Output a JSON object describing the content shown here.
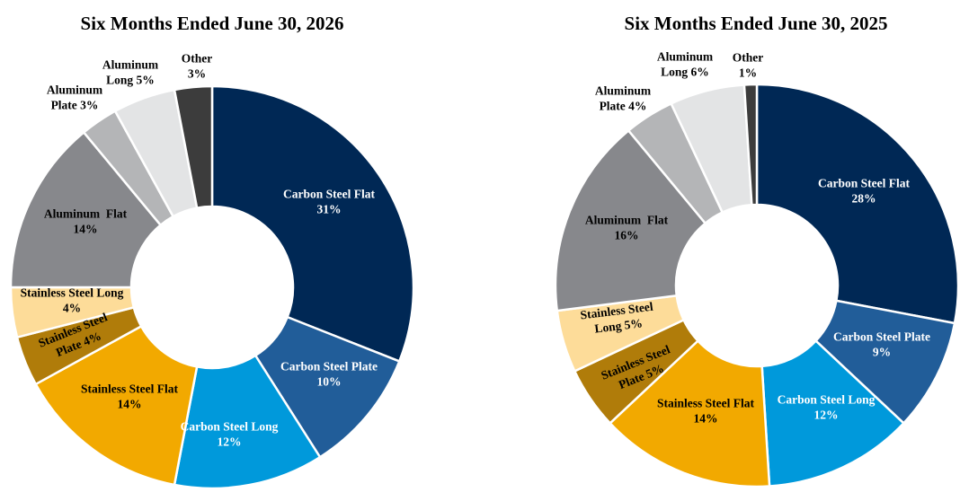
{
  "chart_data": [
    {
      "type": "pie",
      "title": "Six Months Ended June 30, 2026",
      "series": [
        {
          "name": "Carbon Steel Flat",
          "value": 31,
          "label_lines": [
            "Carbon Steel Flat",
            "31%"
          ],
          "color": "#002855",
          "text_color": "#ffffff"
        },
        {
          "name": "Carbon Steel Plate",
          "value": 10,
          "label_lines": [
            "Carbon Steel Plate",
            "10%"
          ],
          "color": "#215D99",
          "text_color": "#ffffff"
        },
        {
          "name": "Carbon Steel Long",
          "value": 12,
          "label_lines": [
            "Carbon Steel Long",
            "12%"
          ],
          "color": "#0099DB",
          "text_color": "#ffffff"
        },
        {
          "name": "Stainless Steel Flat",
          "value": 14,
          "label_lines": [
            "Stainless Steel Flat",
            "14%"
          ],
          "color": "#F2A900",
          "text_color": "#000000"
        },
        {
          "name": "Stainless Steel Plate",
          "value": 4,
          "label_lines": [
            "Stainless Steel",
            "Plate 4%"
          ],
          "color": "#B07C0A",
          "text_color": "#000000"
        },
        {
          "name": "Stainless Steel Long",
          "value": 4,
          "label_lines": [
            "Stainless Steel Long",
            "4%"
          ],
          "color": "#FDDC99",
          "text_color": "#000000"
        },
        {
          "name": "Aluminum Flat",
          "value": 14,
          "label_lines": [
            "Aluminum  Flat",
            "14%"
          ],
          "color": "#87888C",
          "text_color": "#000000"
        },
        {
          "name": "Aluminum Plate",
          "value": 3,
          "label_lines": [
            "Aluminum",
            "Plate 3%"
          ],
          "color": "#B4B5B7",
          "text_color": "#000000"
        },
        {
          "name": "Aluminum Long",
          "value": 5,
          "label_lines": [
            "Aluminum",
            "Long 5%"
          ],
          "color": "#E3E4E5",
          "text_color": "#000000"
        },
        {
          "name": "Other",
          "value": 3,
          "label_lines": [
            "Other",
            "3%"
          ],
          "color": "#3C3C3C",
          "text_color": "#000000"
        }
      ]
    },
    {
      "type": "pie",
      "title": "Six Months Ended June 30, 2025",
      "series": [
        {
          "name": "Carbon Steel Flat",
          "value": 28,
          "label_lines": [
            "Carbon Steel Flat",
            "28%"
          ],
          "color": "#002855",
          "text_color": "#ffffff"
        },
        {
          "name": "Carbon Steel Plate",
          "value": 9,
          "label_lines": [
            "Carbon Steel Plate",
            "9%"
          ],
          "color": "#215D99",
          "text_color": "#ffffff"
        },
        {
          "name": "Carbon Steel Long",
          "value": 12,
          "label_lines": [
            "Carbon Steel Long",
            "12%"
          ],
          "color": "#0099DB",
          "text_color": "#ffffff"
        },
        {
          "name": "Stainless Steel Flat",
          "value": 14,
          "label_lines": [
            "Stainless Steel Flat",
            "14%"
          ],
          "color": "#F2A900",
          "text_color": "#000000"
        },
        {
          "name": "Stainless Steel Plate",
          "value": 5,
          "label_lines": [
            "Stainless Steel",
            "Plate 5%"
          ],
          "color": "#B07C0A",
          "text_color": "#000000"
        },
        {
          "name": "Stainless Steel Long",
          "value": 5,
          "label_lines": [
            "Stainless Steel",
            "Long 5%"
          ],
          "color": "#FDDC99",
          "text_color": "#000000"
        },
        {
          "name": "Aluminum Flat",
          "value": 16,
          "label_lines": [
            "Aluminum  Flat",
            "16%"
          ],
          "color": "#87888C",
          "text_color": "#000000"
        },
        {
          "name": "Aluminum Plate",
          "value": 4,
          "label_lines": [
            "Aluminum",
            "Plate 4%"
          ],
          "color": "#B4B5B7",
          "text_color": "#000000"
        },
        {
          "name": "Aluminum Long",
          "value": 6,
          "label_lines": [
            "Aluminum",
            "Long 6%"
          ],
          "color": "#E3E4E5",
          "text_color": "#000000"
        },
        {
          "name": "Other",
          "value": 1,
          "label_lines": [
            "Other",
            "1%"
          ],
          "color": "#3C3C3C",
          "text_color": "#000000"
        }
      ]
    }
  ]
}
